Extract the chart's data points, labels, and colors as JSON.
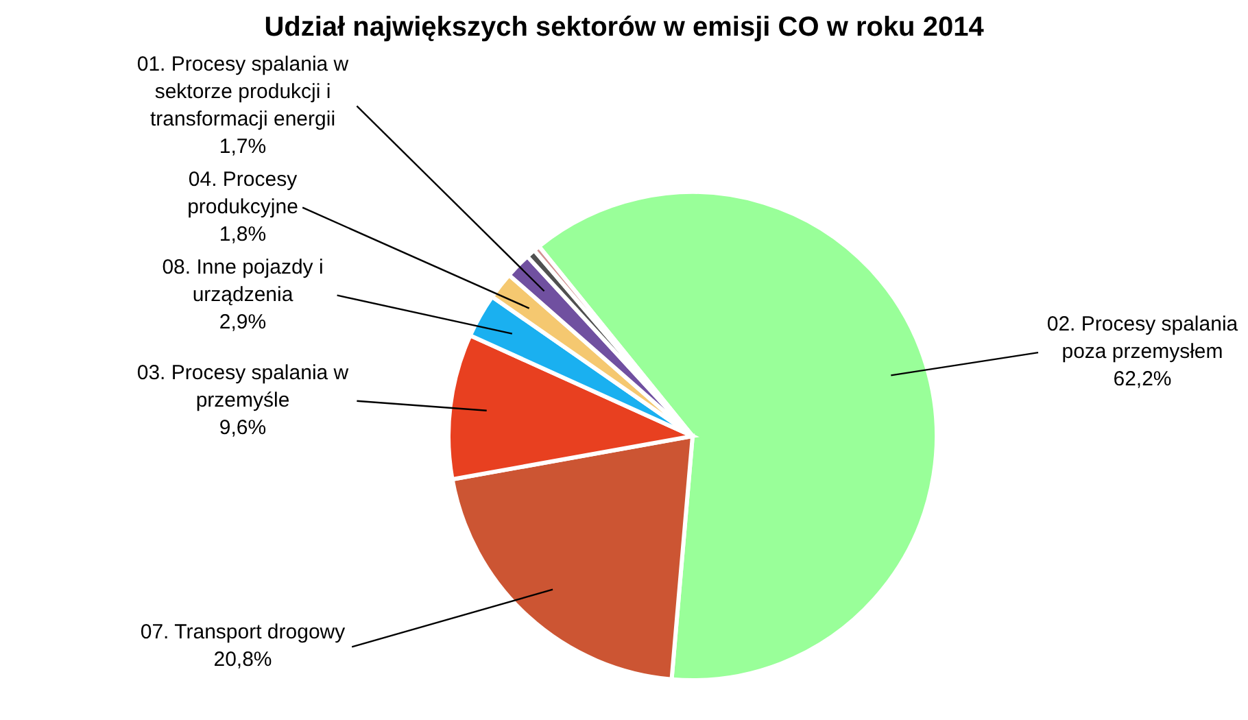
{
  "chart_data": {
    "type": "pie",
    "title": "Udział największych sektorów w emisji CO w roku 2014",
    "categories": [
      "02. Procesy spalania poza przemysłem",
      "07. Transport drogowy",
      "03. Procesy spalania w przemyśle",
      "08. Inne pojazdy i urządzenia",
      "04. Procesy produkcyjne",
      "01. Procesy spalania w sektorze produkcji i transformacji energii",
      null,
      null
    ],
    "values": [
      62.2,
      20.8,
      9.6,
      2.9,
      1.8,
      1.7,
      0.6,
      0.4
    ],
    "value_labels": [
      "62,2%",
      "20,8%",
      "9,6%",
      "2,9%",
      "1,8%",
      "1,7%",
      null,
      null
    ],
    "colors": [
      "#99ff99",
      "#cc5533",
      "#e84020",
      "#1ab0f0",
      "#f5c870",
      "#7050a0",
      "#505050",
      "#d09090"
    ]
  }
}
